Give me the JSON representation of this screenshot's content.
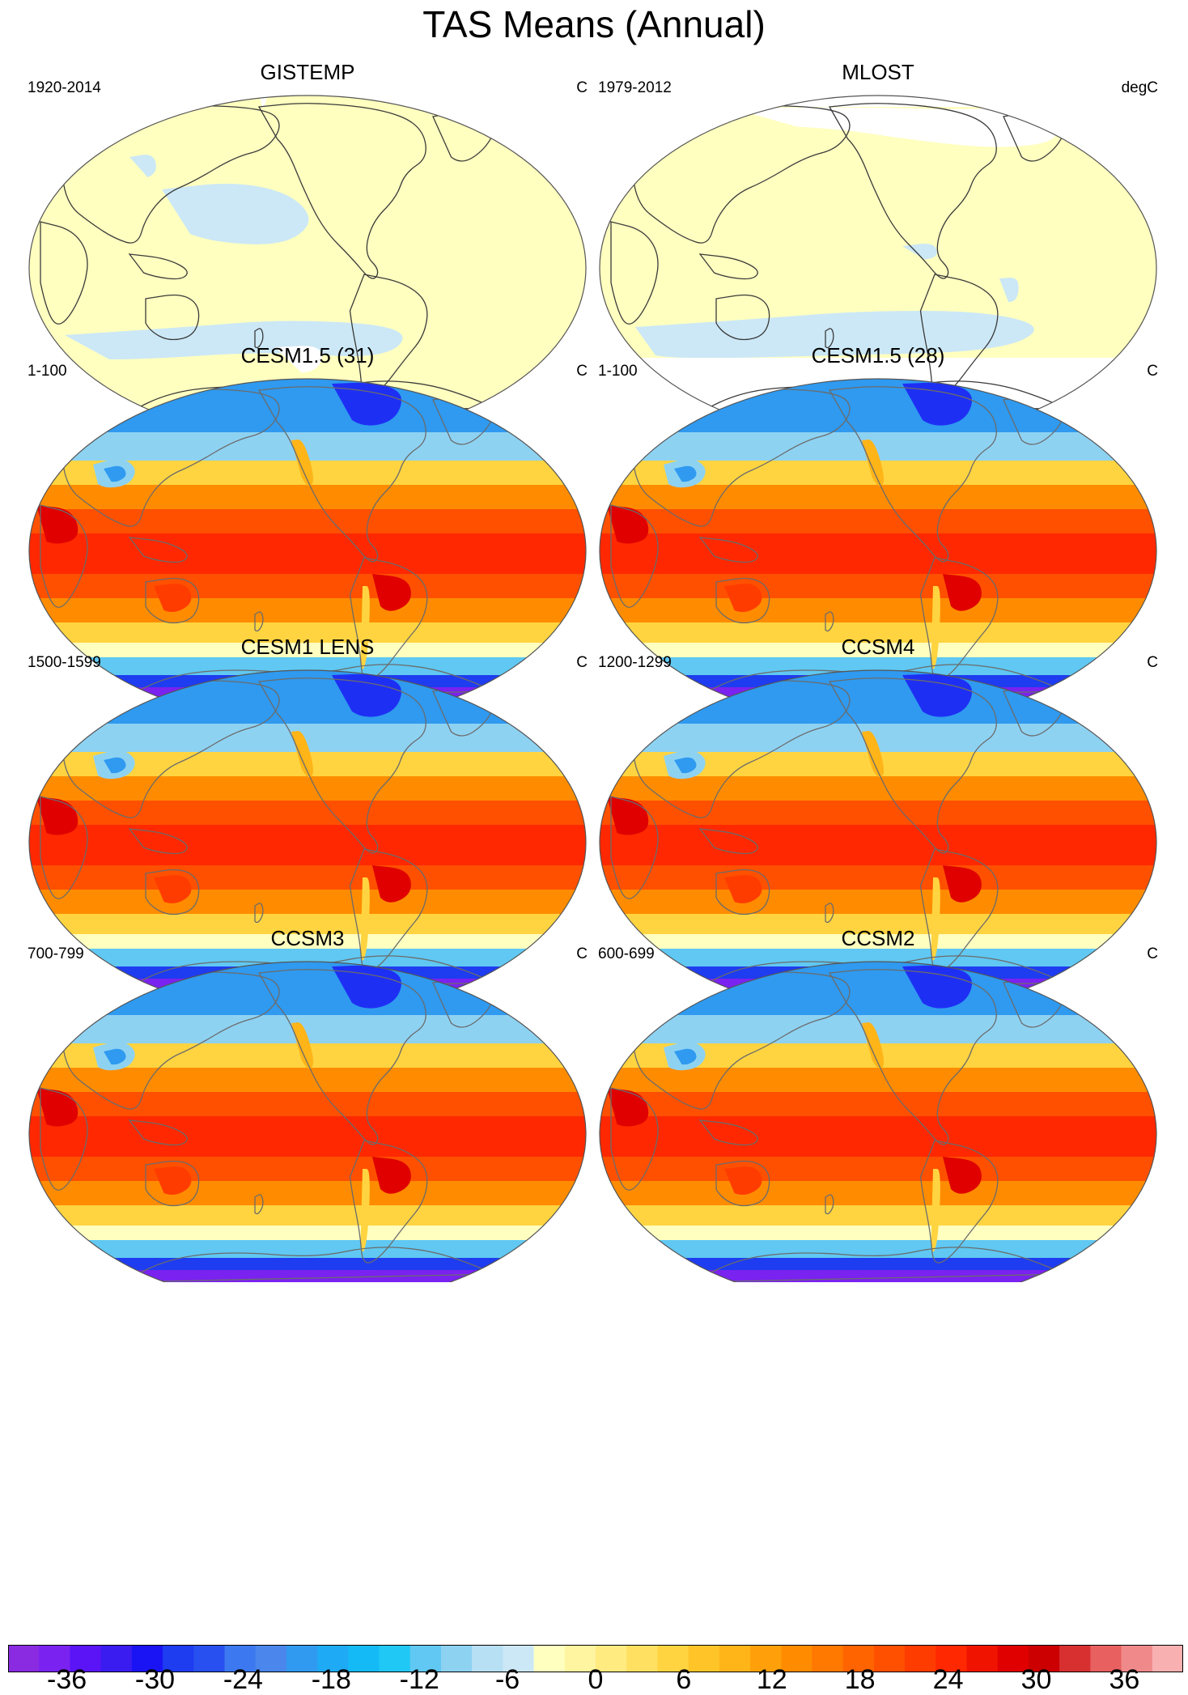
{
  "title": "TAS Means (Annual)",
  "panels": [
    {
      "title": "GISTEMP",
      "period": "1920-2014",
      "unit": "C",
      "style": "obs1"
    },
    {
      "title": "MLOST",
      "period": "1979-2012",
      "unit": "degC",
      "style": "obs2"
    },
    {
      "title": "CESM1.5 (31)",
      "period": "1-100",
      "unit": "C",
      "style": "model"
    },
    {
      "title": "CESM1.5 (28)",
      "period": "1-100",
      "unit": "C",
      "style": "model"
    },
    {
      "title": "CESM1 LENS",
      "period": "1500-1599",
      "unit": "C",
      "style": "model"
    },
    {
      "title": "CCSM4",
      "period": "1200-1299",
      "unit": "C",
      "style": "model"
    },
    {
      "title": "CCSM3",
      "period": "700-799",
      "unit": "C",
      "style": "model"
    },
    {
      "title": "CCSM2",
      "period": "600-699",
      "unit": "C",
      "style": "model"
    }
  ],
  "colorbar": {
    "colors": [
      "#8a2be2",
      "#7a22f0",
      "#5a14f5",
      "#3a1cf0",
      "#1a14f5",
      "#1e3cf0",
      "#2850f0",
      "#3c78f0",
      "#4a86ec",
      "#2f9af0",
      "#1eaaf5",
      "#14baf5",
      "#20c8f5",
      "#60c8f2",
      "#8ed2f2",
      "#b8e0f4",
      "#cce8f6",
      "#ffffc0",
      "#fff5a0",
      "#ffeb80",
      "#ffe060",
      "#ffd440",
      "#ffc428",
      "#ffb418",
      "#ffa00a",
      "#ff8c00",
      "#ff7800",
      "#ff6400",
      "#ff5000",
      "#ff3c00",
      "#ff2800",
      "#f01400",
      "#e00000",
      "#cc0000",
      "#d83030",
      "#e86060",
      "#f08a8a",
      "#f8b0b0"
    ],
    "tick_labels": [
      "-36",
      "-30",
      "-24",
      "-18",
      "-12",
      "-6",
      "0",
      "6",
      "12",
      "18",
      "24",
      "30",
      "36"
    ],
    "tick_values": [
      -36,
      -30,
      -24,
      -18,
      -12,
      -6,
      0,
      6,
      12,
      18,
      24,
      30,
      36
    ],
    "range": [
      -40,
      40
    ]
  }
}
